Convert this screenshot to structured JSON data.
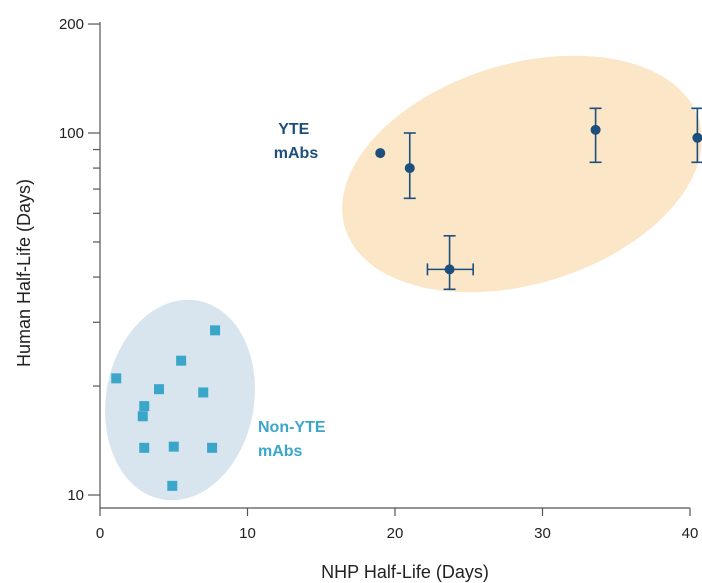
{
  "chart_data": {
    "type": "scatter",
    "title": "",
    "xlabel": "NHP Half-Life (Days)",
    "ylabel": "Human Half-Life (Days)",
    "xlim": [
      0,
      40
    ],
    "ylim": [
      9,
      200
    ],
    "y_scale": "log",
    "x_ticks": [
      0,
      10,
      20,
      30,
      40
    ],
    "y_ticks_labeled": [
      10,
      100,
      200
    ],
    "y_ticks_minor": [
      20,
      30,
      40,
      50,
      60,
      70,
      80,
      90
    ],
    "grid": false,
    "colors": {
      "yte": "#1d4f7c",
      "non_yte": "#3aa6c9",
      "yte_region": "#fbe6c7",
      "non_yte_region": "#d8e4ee"
    },
    "annotations": [
      {
        "lines": [
          "YTE",
          "mAbs"
        ],
        "series": "YTE mAbs"
      },
      {
        "lines": [
          "Non-YTE",
          "mAbs"
        ],
        "series": "Non-YTE mAbs"
      }
    ],
    "series": [
      {
        "name": "YTE mAbs",
        "marker": "circle",
        "points": [
          {
            "x": 19.0,
            "y": 88
          },
          {
            "x": 21.0,
            "y": 80,
            "y_low": 66,
            "y_high": 100
          },
          {
            "x": 23.7,
            "y": 42,
            "y_low": 37,
            "y_high": 52,
            "x_low": 22.2,
            "x_high": 25.3
          },
          {
            "x": 33.6,
            "y": 102,
            "y_low": 83,
            "y_high": 117
          },
          {
            "x": 40.5,
            "y": 97,
            "y_low": 83,
            "y_high": 117
          }
        ]
      },
      {
        "name": "Non-YTE mAbs",
        "marker": "square",
        "points": [
          {
            "x": 1.1,
            "y": 21
          },
          {
            "x": 2.9,
            "y": 16.5
          },
          {
            "x": 3.0,
            "y": 17.6
          },
          {
            "x": 3.0,
            "y": 13.5
          },
          {
            "x": 4.0,
            "y": 19.6
          },
          {
            "x": 5.0,
            "y": 13.6
          },
          {
            "x": 4.9,
            "y": 10.6
          },
          {
            "x": 5.5,
            "y": 23.5
          },
          {
            "x": 7.0,
            "y": 19.2
          },
          {
            "x": 7.6,
            "y": 13.5
          },
          {
            "x": 7.8,
            "y": 28.5
          }
        ]
      }
    ]
  }
}
